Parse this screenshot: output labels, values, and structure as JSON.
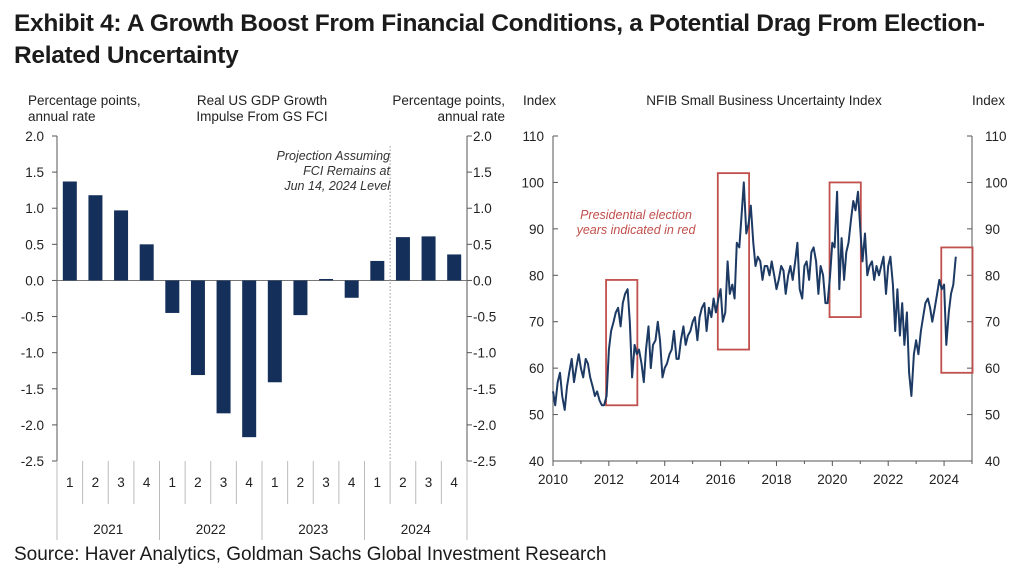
{
  "title": "Exhibit 4: A Growth Boost From Financial Conditions, a Potential Drag From Election-Related Uncertainty",
  "source": "Source: Haver Analytics, Goldman Sachs Global Investment Research",
  "colors": {
    "bar": "#14305a",
    "line": "#1c3a63",
    "highlight": "#c0504d",
    "axis": "#555555"
  },
  "chart_data": [
    {
      "type": "bar",
      "title": "Real US GDP Growth Impulse From GS FCI",
      "title_lines": [
        "Real US GDP Growth",
        "Impulse From GS FCI"
      ],
      "ylabel_left_lines": [
        "Percentage points,",
        "annual rate"
      ],
      "ylabel_right_lines": [
        "Percentage points,",
        "annual rate"
      ],
      "ylim": [
        -2.5,
        2.0
      ],
      "yticks": [
        "2.0",
        "1.5",
        "1.0",
        "0.5",
        "0.0",
        "-0.5",
        "-1.0",
        "-1.5",
        "-2.0",
        "-2.5"
      ],
      "categories": [
        "1",
        "2",
        "3",
        "4",
        "1",
        "2",
        "3",
        "4",
        "1",
        "2",
        "3",
        "4",
        "1",
        "2",
        "3",
        "4"
      ],
      "years": [
        "2021",
        "2022",
        "2023",
        "2024"
      ],
      "values": [
        1.37,
        1.18,
        0.97,
        0.5,
        -0.45,
        -1.31,
        -1.84,
        -2.17,
        -1.41,
        -0.48,
        0.02,
        -0.24,
        0.27,
        0.6,
        0.61,
        0.36
      ],
      "annotation_lines": [
        "Projection Assuming",
        "FCI Remains at",
        "Jun 14, 2024 Level"
      ]
    },
    {
      "type": "line",
      "title": "NFIB Small Business Uncertainty Index",
      "ylabel_left": "Index",
      "ylabel_right": "Index",
      "ylim": [
        40,
        110
      ],
      "yticks": [
        "110",
        "100",
        "90",
        "80",
        "70",
        "60",
        "50",
        "40"
      ],
      "xlim": [
        2010,
        2025
      ],
      "xticks": [
        "2010",
        "2012",
        "2014",
        "2016",
        "2018",
        "2020",
        "2022",
        "2024"
      ],
      "annotation_lines": [
        "Presidential election",
        "years indicated in red"
      ],
      "highlight_years": [
        2012,
        2016,
        2020,
        2024
      ],
      "series": [
        {
          "x": [
            2010.0,
            2010.08,
            2010.17,
            2010.25,
            2010.33,
            2010.42,
            2010.5,
            2010.58,
            2010.67,
            2010.75,
            2010.83,
            2010.92,
            2011.0,
            2011.08,
            2011.17,
            2011.25,
            2011.33,
            2011.42,
            2011.5,
            2011.58,
            2011.67,
            2011.75,
            2011.83,
            2011.92,
            2012.0,
            2012.08,
            2012.17,
            2012.25,
            2012.33,
            2012.42,
            2012.5,
            2012.58,
            2012.67,
            2012.75,
            2012.83,
            2012.92,
            2013.0,
            2013.08,
            2013.17,
            2013.25,
            2013.33,
            2013.42,
            2013.5,
            2013.58,
            2013.67,
            2013.75,
            2013.83,
            2013.92,
            2014.0,
            2014.08,
            2014.17,
            2014.25,
            2014.33,
            2014.42,
            2014.5,
            2014.58,
            2014.67,
            2014.75,
            2014.83,
            2014.92,
            2015.0,
            2015.08,
            2015.17,
            2015.25,
            2015.33,
            2015.42,
            2015.5,
            2015.58,
            2015.67,
            2015.75,
            2015.83,
            2015.92,
            2016.0,
            2016.08,
            2016.17,
            2016.25,
            2016.33,
            2016.42,
            2016.5,
            2016.58,
            2016.67,
            2016.75,
            2016.83,
            2016.92,
            2017.0,
            2017.08,
            2017.17,
            2017.25,
            2017.33,
            2017.42,
            2017.5,
            2017.58,
            2017.67,
            2017.75,
            2017.83,
            2017.92,
            2018.0,
            2018.08,
            2018.17,
            2018.25,
            2018.33,
            2018.42,
            2018.5,
            2018.58,
            2018.67,
            2018.75,
            2018.83,
            2018.92,
            2019.0,
            2019.08,
            2019.17,
            2019.25,
            2019.33,
            2019.42,
            2019.5,
            2019.58,
            2019.67,
            2019.75,
            2019.83,
            2019.92,
            2020.0,
            2020.08,
            2020.17,
            2020.25,
            2020.33,
            2020.42,
            2020.5,
            2020.58,
            2020.67,
            2020.75,
            2020.83,
            2020.92,
            2021.0,
            2021.08,
            2021.17,
            2021.25,
            2021.33,
            2021.42,
            2021.5,
            2021.58,
            2021.67,
            2021.75,
            2021.83,
            2021.92,
            2022.0,
            2022.08,
            2022.17,
            2022.25,
            2022.33,
            2022.42,
            2022.5,
            2022.58,
            2022.67,
            2022.75,
            2022.83,
            2022.92,
            2023.0,
            2023.08,
            2023.17,
            2023.25,
            2023.33,
            2023.42,
            2023.5,
            2023.58,
            2023.67,
            2023.75,
            2023.83,
            2023.92,
            2024.0,
            2024.08,
            2024.17,
            2024.25,
            2024.33,
            2024.42
          ],
          "values": [
            55,
            52,
            57,
            59,
            54,
            51,
            56,
            59,
            62,
            57,
            60,
            63,
            60,
            58,
            62,
            61,
            58,
            56,
            54,
            55,
            53,
            52,
            52,
            54,
            64,
            68,
            70,
            72,
            73,
            69,
            74,
            76,
            77,
            70,
            58,
            65,
            63,
            64,
            61,
            57,
            64,
            69,
            60,
            65,
            66,
            70,
            66,
            58,
            60,
            61,
            63,
            64,
            68,
            62,
            62,
            66,
            69,
            65,
            67,
            68,
            70,
            71,
            66,
            71,
            73,
            74,
            68,
            73,
            71,
            75,
            72,
            75,
            77,
            70,
            72,
            83,
            76,
            78,
            75,
            87,
            86,
            93,
            100,
            89,
            91,
            95,
            87,
            82,
            84,
            83,
            79,
            82,
            82,
            80,
            83,
            80,
            77,
            79,
            82,
            81,
            76,
            80,
            82,
            79,
            83,
            87,
            77,
            75,
            82,
            83,
            79,
            85,
            86,
            83,
            76,
            82,
            80,
            74,
            74,
            80,
            87,
            86,
            98,
            77,
            88,
            79,
            85,
            87,
            92,
            96,
            94,
            98,
            90,
            83,
            89,
            80,
            82,
            83,
            79,
            82,
            80,
            82,
            84,
            76,
            82,
            84,
            78,
            68,
            77,
            67,
            74,
            65,
            72,
            59,
            54,
            63,
            66,
            63,
            68,
            71,
            74,
            75,
            73,
            70,
            73,
            76,
            79,
            77,
            78,
            65,
            72,
            76,
            78,
            84
          ]
        }
      ]
    }
  ]
}
